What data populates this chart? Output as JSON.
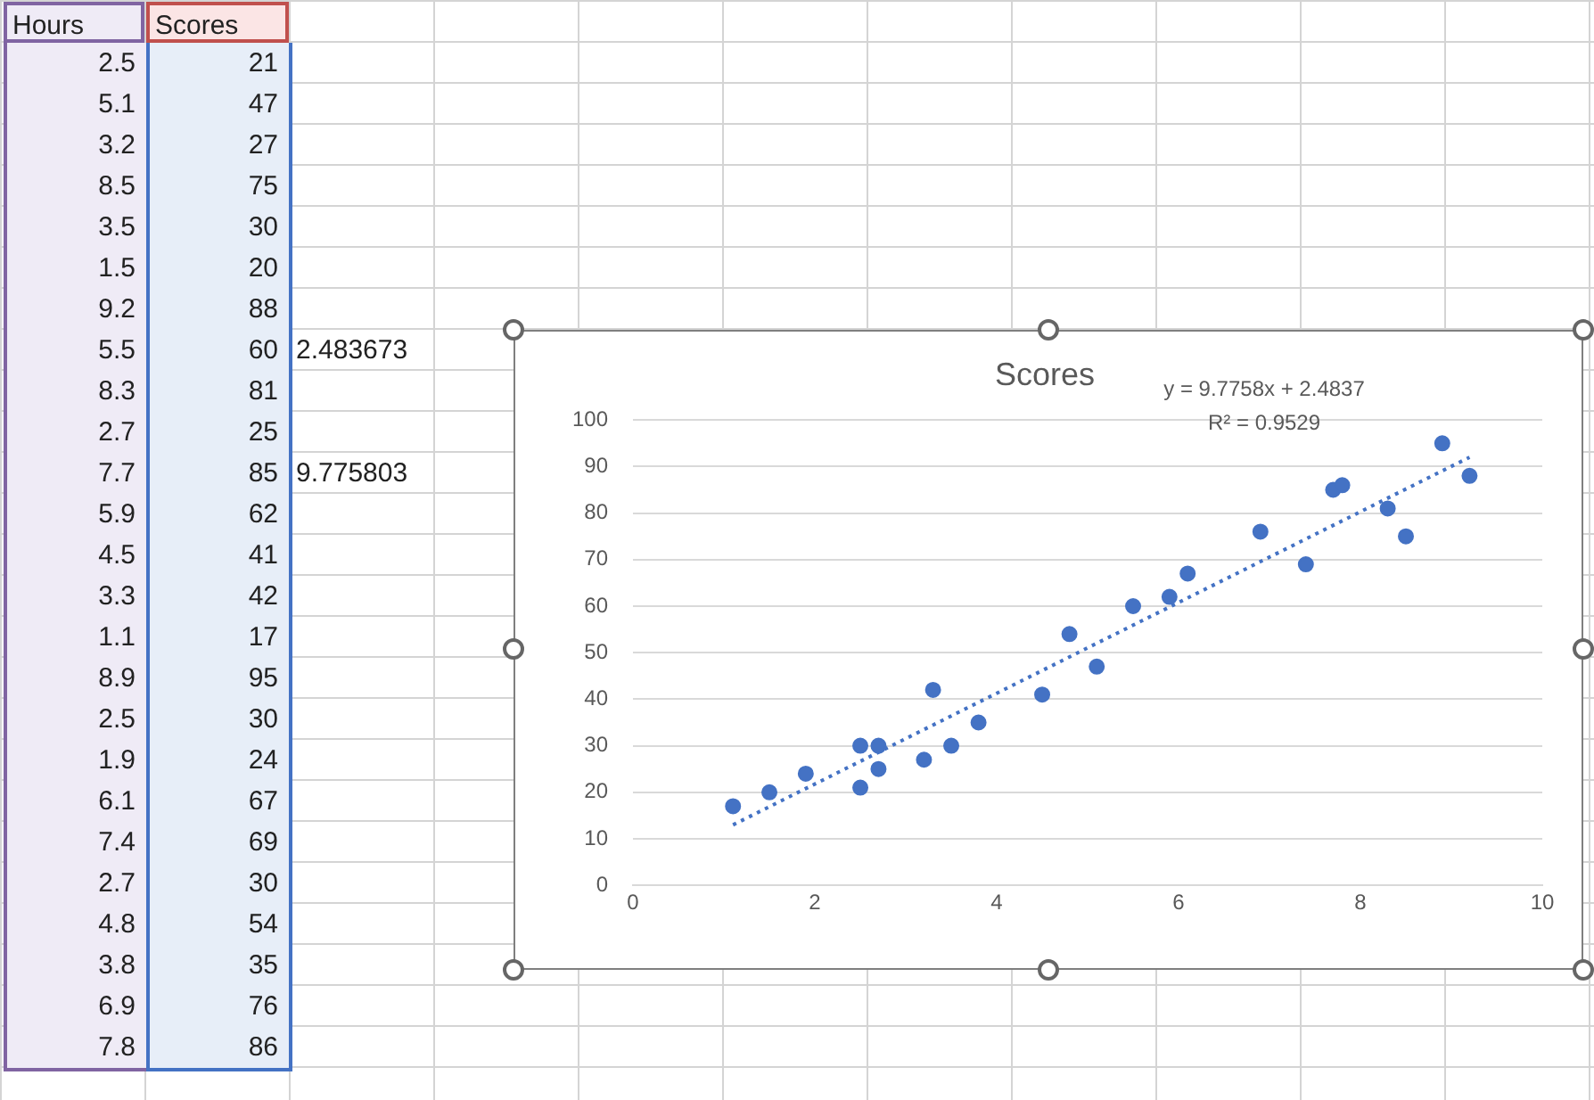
{
  "chart_data": {
    "type": "scatter",
    "title": "Scores",
    "marker": "circle",
    "grid": "y",
    "xlim": [
      0,
      10
    ],
    "xticks": [
      0,
      2,
      4,
      6,
      8,
      10
    ],
    "ylim": [
      0,
      100
    ],
    "yticks": [
      0,
      10,
      20,
      30,
      40,
      50,
      60,
      70,
      80,
      90,
      100
    ],
    "series": [
      {
        "color": "#4472c4",
        "x": [
          2.5,
          5.1,
          3.2,
          8.5,
          3.5,
          1.5,
          9.2,
          5.5,
          8.3,
          2.7,
          7.7,
          5.9,
          4.5,
          3.3,
          1.1,
          8.9,
          2.5,
          1.9,
          6.1,
          7.4,
          2.7,
          4.8,
          3.8,
          6.9,
          7.8
        ],
        "values": [
          21,
          47,
          27,
          75,
          30,
          20,
          88,
          60,
          81,
          25,
          85,
          62,
          41,
          42,
          17,
          95,
          30,
          24,
          67,
          69,
          30,
          54,
          35,
          76,
          86
        ]
      },
      {
        "type": "line",
        "color": "#4472c4",
        "line_style": "dotted",
        "marker": "none",
        "x": [
          1.1,
          9.2
        ],
        "values": [
          13,
          92
        ]
      }
    ],
    "annotations": [
      "y = 9.7758x + 2.4837",
      "R² = 0.9529",
      "2.483673",
      "9.775803",
      "Hours",
      "Scores",
      "2.5",
      "21",
      "5.1",
      "47",
      "3.2",
      "27",
      "8.5",
      "75",
      "3.5",
      "30",
      "1.5",
      "20",
      "9.2",
      "88",
      "5.5",
      "60",
      "8.3",
      "81",
      "2.7",
      "25",
      "7.7",
      "85",
      "5.9",
      "62",
      "4.5",
      "41",
      "3.3",
      "42",
      "1.1",
      "17",
      "8.9",
      "95",
      "2.5",
      "30",
      "1.9",
      "24",
      "6.1",
      "67",
      "7.4",
      "69",
      "2.7",
      "30",
      "4.8",
      "54",
      "3.8",
      "35",
      "6.9",
      "76",
      "7.8",
      "86"
    ]
  }
}
